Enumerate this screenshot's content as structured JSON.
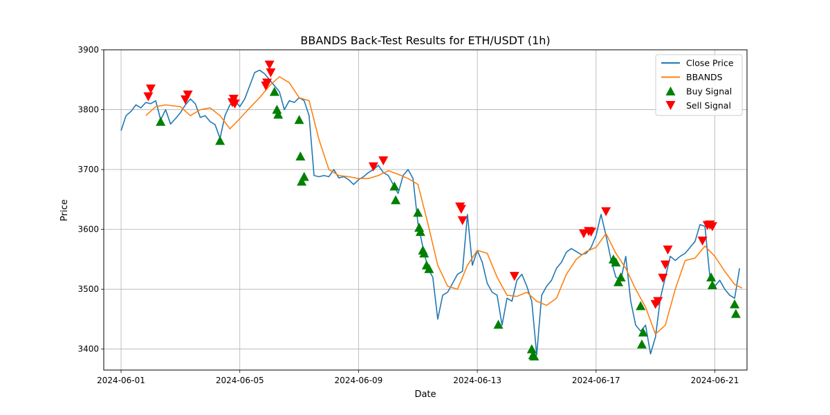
{
  "chart_data": {
    "type": "line",
    "title": "BBANDS Back-Test Results for ETH/USDT (1h)",
    "xlabel": "Date",
    "ylabel": "Price",
    "xlim": [
      "2024-05-31T10:00",
      "2024-06-22T02:00"
    ],
    "ylim": [
      3365,
      3900
    ],
    "x_ticks": [
      "2024-06-01",
      "2024-06-05",
      "2024-06-09",
      "2024-06-13",
      "2024-06-17",
      "2024-06-21"
    ],
    "y_ticks": [
      3400,
      3500,
      3600,
      3700,
      3800,
      3900
    ],
    "grid": true,
    "legend_position": "upper right",
    "colors": {
      "close": "#1f77b4",
      "bbands": "#ff7f0e",
      "buy": "#008000",
      "sell": "#ff0000"
    },
    "legend": [
      "Close Price",
      "BBANDS",
      "Buy Signal",
      "Sell Signal"
    ],
    "close_price": {
      "name": "Close Price",
      "points": [
        [
          "2024-06-01T00:00",
          3765
        ],
        [
          "2024-06-01T04:00",
          3790
        ],
        [
          "2024-06-01T08:00",
          3797
        ],
        [
          "2024-06-01T12:00",
          3808
        ],
        [
          "2024-06-01T16:00",
          3803
        ],
        [
          "2024-06-01T20:00",
          3812
        ],
        [
          "2024-06-02T00:00",
          3810
        ],
        [
          "2024-06-02T04:00",
          3815
        ],
        [
          "2024-06-02T08:00",
          3783
        ],
        [
          "2024-06-02T12:00",
          3800
        ],
        [
          "2024-06-02T16:00",
          3776
        ],
        [
          "2024-06-02T20:00",
          3785
        ],
        [
          "2024-06-03T00:00",
          3795
        ],
        [
          "2024-06-03T04:00",
          3808
        ],
        [
          "2024-06-03T08:00",
          3818
        ],
        [
          "2024-06-03T12:00",
          3810
        ],
        [
          "2024-06-03T16:00",
          3787
        ],
        [
          "2024-06-03T20:00",
          3790
        ],
        [
          "2024-06-04T00:00",
          3780
        ],
        [
          "2024-06-04T04:00",
          3775
        ],
        [
          "2024-06-04T08:00",
          3752
        ],
        [
          "2024-06-04T12:00",
          3790
        ],
        [
          "2024-06-04T16:00",
          3808
        ],
        [
          "2024-06-04T20:00",
          3815
        ],
        [
          "2024-06-05T00:00",
          3805
        ],
        [
          "2024-06-05T04:00",
          3818
        ],
        [
          "2024-06-05T08:00",
          3840
        ],
        [
          "2024-06-05T12:00",
          3862
        ],
        [
          "2024-06-05T16:00",
          3866
        ],
        [
          "2024-06-05T20:00",
          3860
        ],
        [
          "2024-06-06T00:00",
          3850
        ],
        [
          "2024-06-06T04:00",
          3840
        ],
        [
          "2024-06-06T08:00",
          3830
        ],
        [
          "2024-06-06T12:00",
          3800
        ],
        [
          "2024-06-06T16:00",
          3815
        ],
        [
          "2024-06-06T20:00",
          3812
        ],
        [
          "2024-06-07T00:00",
          3820
        ],
        [
          "2024-06-07T04:00",
          3815
        ],
        [
          "2024-06-07T08:00",
          3790
        ],
        [
          "2024-06-07T12:00",
          3690
        ],
        [
          "2024-06-07T16:00",
          3688
        ],
        [
          "2024-06-07T20:00",
          3690
        ],
        [
          "2024-06-08T00:00",
          3688
        ],
        [
          "2024-06-08T04:00",
          3700
        ],
        [
          "2024-06-08T08:00",
          3686
        ],
        [
          "2024-06-08T12:00",
          3688
        ],
        [
          "2024-06-08T16:00",
          3683
        ],
        [
          "2024-06-08T20:00",
          3675
        ],
        [
          "2024-06-09T00:00",
          3683
        ],
        [
          "2024-06-09T04:00",
          3688
        ],
        [
          "2024-06-09T08:00",
          3695
        ],
        [
          "2024-06-09T12:00",
          3700
        ],
        [
          "2024-06-09T16:00",
          3707
        ],
        [
          "2024-06-09T20:00",
          3695
        ],
        [
          "2024-06-10T00:00",
          3690
        ],
        [
          "2024-06-10T04:00",
          3675
        ],
        [
          "2024-06-10T08:00",
          3660
        ],
        [
          "2024-06-10T12:00",
          3690
        ],
        [
          "2024-06-10T16:00",
          3700
        ],
        [
          "2024-06-10T20:00",
          3685
        ],
        [
          "2024-06-11T00:00",
          3610
        ],
        [
          "2024-06-11T04:00",
          3570
        ],
        [
          "2024-06-11T08:00",
          3535
        ],
        [
          "2024-06-11T12:00",
          3520
        ],
        [
          "2024-06-11T16:00",
          3450
        ],
        [
          "2024-06-11T20:00",
          3490
        ],
        [
          "2024-06-12T00:00",
          3495
        ],
        [
          "2024-06-12T04:00",
          3510
        ],
        [
          "2024-06-12T08:00",
          3525
        ],
        [
          "2024-06-12T12:00",
          3530
        ],
        [
          "2024-06-12T16:00",
          3625
        ],
        [
          "2024-06-12T20:00",
          3540
        ],
        [
          "2024-06-13T00:00",
          3565
        ],
        [
          "2024-06-13T04:00",
          3545
        ],
        [
          "2024-06-13T08:00",
          3510
        ],
        [
          "2024-06-13T12:00",
          3495
        ],
        [
          "2024-06-13T16:00",
          3490
        ],
        [
          "2024-06-13T20:00",
          3440
        ],
        [
          "2024-06-14T00:00",
          3485
        ],
        [
          "2024-06-14T04:00",
          3480
        ],
        [
          "2024-06-14T08:00",
          3515
        ],
        [
          "2024-06-14T12:00",
          3525
        ],
        [
          "2024-06-14T16:00",
          3505
        ],
        [
          "2024-06-14T20:00",
          3480
        ],
        [
          "2024-06-15T00:00",
          3390
        ],
        [
          "2024-06-15T04:00",
          3490
        ],
        [
          "2024-06-15T08:00",
          3505
        ],
        [
          "2024-06-15T12:00",
          3515
        ],
        [
          "2024-06-15T16:00",
          3535
        ],
        [
          "2024-06-15T20:00",
          3545
        ],
        [
          "2024-06-16T00:00",
          3562
        ],
        [
          "2024-06-16T04:00",
          3568
        ],
        [
          "2024-06-16T08:00",
          3563
        ],
        [
          "2024-06-16T12:00",
          3558
        ],
        [
          "2024-06-16T16:00",
          3560
        ],
        [
          "2024-06-16T20:00",
          3570
        ],
        [
          "2024-06-17T00:00",
          3590
        ],
        [
          "2024-06-17T04:00",
          3625
        ],
        [
          "2024-06-17T08:00",
          3590
        ],
        [
          "2024-06-17T12:00",
          3550
        ],
        [
          "2024-06-17T16:00",
          3520
        ],
        [
          "2024-06-17T20:00",
          3515
        ],
        [
          "2024-06-18T00:00",
          3555
        ],
        [
          "2024-06-18T04:00",
          3480
        ],
        [
          "2024-06-18T08:00",
          3440
        ],
        [
          "2024-06-18T12:00",
          3430
        ],
        [
          "2024-06-18T16:00",
          3440
        ],
        [
          "2024-06-18T20:00",
          3392
        ],
        [
          "2024-06-19T00:00",
          3420
        ],
        [
          "2024-06-19T04:00",
          3485
        ],
        [
          "2024-06-19T08:00",
          3520
        ],
        [
          "2024-06-19T12:00",
          3555
        ],
        [
          "2024-06-19T16:00",
          3548
        ],
        [
          "2024-06-19T20:00",
          3555
        ],
        [
          "2024-06-20T00:00",
          3560
        ],
        [
          "2024-06-20T04:00",
          3570
        ],
        [
          "2024-06-20T08:00",
          3580
        ],
        [
          "2024-06-20T12:00",
          3608
        ],
        [
          "2024-06-20T16:00",
          3605
        ],
        [
          "2024-06-20T20:00",
          3520
        ],
        [
          "2024-06-21T00:00",
          3505
        ],
        [
          "2024-06-21T04:00",
          3515
        ],
        [
          "2024-06-21T08:00",
          3500
        ],
        [
          "2024-06-21T12:00",
          3490
        ],
        [
          "2024-06-21T16:00",
          3485
        ],
        [
          "2024-06-21T20:00",
          3535
        ]
      ]
    },
    "bbands": {
      "name": "BBANDS",
      "points": [
        [
          "2024-06-01T20:00",
          3790
        ],
        [
          "2024-06-02T04:00",
          3805
        ],
        [
          "2024-06-02T12:00",
          3808
        ],
        [
          "2024-06-03T00:00",
          3805
        ],
        [
          "2024-06-03T08:00",
          3790
        ],
        [
          "2024-06-03T16:00",
          3800
        ],
        [
          "2024-06-04T00:00",
          3803
        ],
        [
          "2024-06-04T08:00",
          3790
        ],
        [
          "2024-06-04T16:00",
          3768
        ],
        [
          "2024-06-05T00:00",
          3785
        ],
        [
          "2024-06-05T08:00",
          3803
        ],
        [
          "2024-06-05T16:00",
          3820
        ],
        [
          "2024-06-06T00:00",
          3840
        ],
        [
          "2024-06-06T08:00",
          3855
        ],
        [
          "2024-06-06T16:00",
          3845
        ],
        [
          "2024-06-07T00:00",
          3820
        ],
        [
          "2024-06-07T08:00",
          3815
        ],
        [
          "2024-06-07T16:00",
          3750
        ],
        [
          "2024-06-08T00:00",
          3700
        ],
        [
          "2024-06-08T08:00",
          3690
        ],
        [
          "2024-06-08T16:00",
          3688
        ],
        [
          "2024-06-09T00:00",
          3685
        ],
        [
          "2024-06-09T08:00",
          3685
        ],
        [
          "2024-06-09T16:00",
          3690
        ],
        [
          "2024-06-10T00:00",
          3698
        ],
        [
          "2024-06-10T08:00",
          3692
        ],
        [
          "2024-06-10T16:00",
          3685
        ],
        [
          "2024-06-11T00:00",
          3675
        ],
        [
          "2024-06-11T08:00",
          3610
        ],
        [
          "2024-06-11T16:00",
          3540
        ],
        [
          "2024-06-12T00:00",
          3505
        ],
        [
          "2024-06-12T08:00",
          3500
        ],
        [
          "2024-06-12T16:00",
          3540
        ],
        [
          "2024-06-13T00:00",
          3565
        ],
        [
          "2024-06-13T08:00",
          3560
        ],
        [
          "2024-06-13T16:00",
          3520
        ],
        [
          "2024-06-14T00:00",
          3490
        ],
        [
          "2024-06-14T08:00",
          3488
        ],
        [
          "2024-06-14T16:00",
          3495
        ],
        [
          "2024-06-15T00:00",
          3480
        ],
        [
          "2024-06-15T08:00",
          3473
        ],
        [
          "2024-06-15T16:00",
          3485
        ],
        [
          "2024-06-16T00:00",
          3525
        ],
        [
          "2024-06-16T08:00",
          3550
        ],
        [
          "2024-06-16T16:00",
          3563
        ],
        [
          "2024-06-17T00:00",
          3570
        ],
        [
          "2024-06-17T08:00",
          3593
        ],
        [
          "2024-06-17T16:00",
          3560
        ],
        [
          "2024-06-18T00:00",
          3535
        ],
        [
          "2024-06-18T08:00",
          3500
        ],
        [
          "2024-06-18T16:00",
          3470
        ],
        [
          "2024-06-19T00:00",
          3425
        ],
        [
          "2024-06-19T08:00",
          3440
        ],
        [
          "2024-06-19T16:00",
          3500
        ],
        [
          "2024-06-20T00:00",
          3548
        ],
        [
          "2024-06-20T08:00",
          3552
        ],
        [
          "2024-06-20T16:00",
          3572
        ],
        [
          "2024-06-21T00:00",
          3555
        ],
        [
          "2024-06-21T08:00",
          3530
        ],
        [
          "2024-06-21T16:00",
          3508
        ],
        [
          "2024-06-21T22:00",
          3502
        ]
      ]
    },
    "buy_signals": [
      [
        "2024-06-02T08:00",
        3780
      ],
      [
        "2024-06-04T08:00",
        3748
      ],
      [
        "2024-06-06T04:00",
        3830
      ],
      [
        "2024-06-06T06:00",
        3800
      ],
      [
        "2024-06-06T07:00",
        3792
      ],
      [
        "2024-06-07T00:00",
        3783
      ],
      [
        "2024-06-07T01:00",
        3722
      ],
      [
        "2024-06-07T02:00",
        3680
      ],
      [
        "2024-06-07T04:00",
        3688
      ],
      [
        "2024-06-10T05:00",
        3672
      ],
      [
        "2024-06-10T06:00",
        3649
      ],
      [
        "2024-06-11T00:00",
        3628
      ],
      [
        "2024-06-11T01:00",
        3603
      ],
      [
        "2024-06-11T02:00",
        3596
      ],
      [
        "2024-06-11T04:00",
        3565
      ],
      [
        "2024-06-11T05:00",
        3560
      ],
      [
        "2024-06-11T07:00",
        3540
      ],
      [
        "2024-06-11T09:00",
        3534
      ],
      [
        "2024-06-13T17:00",
        3441
      ],
      [
        "2024-06-14T20:00",
        3400
      ],
      [
        "2024-06-14T21:00",
        3390
      ],
      [
        "2024-06-14T22:00",
        3388
      ],
      [
        "2024-06-17T14:00",
        3550
      ],
      [
        "2024-06-17T16:00",
        3545
      ],
      [
        "2024-06-17T18:00",
        3512
      ],
      [
        "2024-06-17T20:00",
        3520
      ],
      [
        "2024-06-18T12:00",
        3472
      ],
      [
        "2024-06-18T13:00",
        3408
      ],
      [
        "2024-06-18T14:00",
        3428
      ],
      [
        "2024-06-20T21:00",
        3520
      ],
      [
        "2024-06-20T22:00",
        3507
      ],
      [
        "2024-06-21T16:00",
        3475
      ],
      [
        "2024-06-21T17:00",
        3459
      ]
    ],
    "sell_signals": [
      [
        "2024-06-01T22:00",
        3822
      ],
      [
        "2024-06-02T00:00",
        3835
      ],
      [
        "2024-06-03T04:00",
        3817
      ],
      [
        "2024-06-03T06:00",
        3825
      ],
      [
        "2024-06-04T18:00",
        3812
      ],
      [
        "2024-06-04T19:00",
        3818
      ],
      [
        "2024-06-04T20:00",
        3810
      ],
      [
        "2024-06-05T21:00",
        3840
      ],
      [
        "2024-06-05T22:00",
        3845
      ],
      [
        "2024-06-06T00:00",
        3875
      ],
      [
        "2024-06-06T01:00",
        3862
      ],
      [
        "2024-06-09T12:00",
        3705
      ],
      [
        "2024-06-09T20:00",
        3715
      ],
      [
        "2024-06-12T10:00",
        3638
      ],
      [
        "2024-06-12T11:00",
        3634
      ],
      [
        "2024-06-12T12:00",
        3615
      ],
      [
        "2024-06-14T06:00",
        3522
      ],
      [
        "2024-06-16T14:00",
        3593
      ],
      [
        "2024-06-16T18:00",
        3597
      ],
      [
        "2024-06-16T20:00",
        3596
      ],
      [
        "2024-06-17T08:00",
        3630
      ],
      [
        "2024-06-19T00:00",
        3475
      ],
      [
        "2024-06-19T02:00",
        3480
      ],
      [
        "2024-06-19T06:00",
        3519
      ],
      [
        "2024-06-19T08:00",
        3541
      ],
      [
        "2024-06-19T10:00",
        3566
      ],
      [
        "2024-06-20T14:00",
        3581
      ],
      [
        "2024-06-20T18:00",
        3607
      ],
      [
        "2024-06-20T20:00",
        3608
      ],
      [
        "2024-06-20T22:00",
        3605
      ]
    ]
  }
}
